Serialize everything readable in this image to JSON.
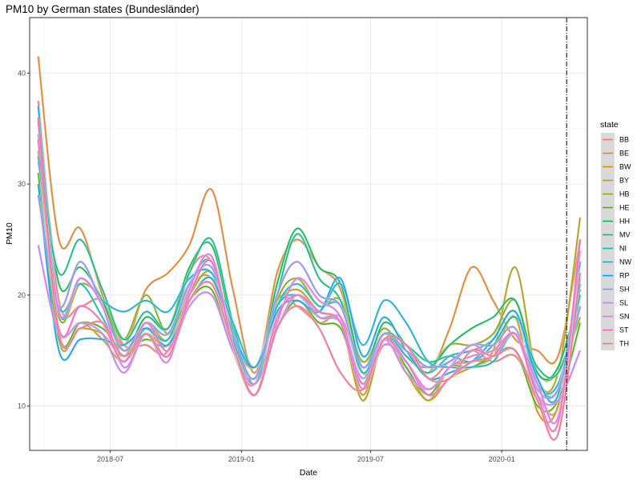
{
  "chart_data": {
    "type": "line",
    "title": "PM10 by German states (Bundesländer)",
    "xlabel": "Date",
    "ylabel": "PM10",
    "xlim": [
      "2018-03-10",
      "2020-04-30"
    ],
    "ylim": [
      6,
      45
    ],
    "x_ticks": [
      "2018-07-01",
      "2019-01-01",
      "2019-07-01",
      "2020-01-01"
    ],
    "x_tick_labels": [
      "2018-07",
      "2019-01",
      "2019-07",
      "2020-01"
    ],
    "y_ticks": [
      10,
      20,
      30,
      40
    ],
    "y_tick_labels": [
      "10",
      "20",
      "30",
      "40"
    ],
    "grid": true,
    "legend": {
      "title": "state",
      "position": "right"
    },
    "reference_line": {
      "x": "2020-04-01",
      "style": "dashdot"
    },
    "x": [
      "2018-03-22",
      "2018-04-20",
      "2018-05-20",
      "2018-06-20",
      "2018-07-20",
      "2018-08-20",
      "2018-09-20",
      "2018-10-20",
      "2018-11-20",
      "2018-12-20",
      "2019-01-20",
      "2019-02-20",
      "2019-03-20",
      "2019-04-20",
      "2019-05-20",
      "2019-06-20",
      "2019-07-20",
      "2019-08-20",
      "2019-09-20",
      "2019-10-20",
      "2019-11-20",
      "2019-12-20",
      "2020-01-20",
      "2020-02-20",
      "2020-03-20",
      "2020-04-20"
    ],
    "series": [
      {
        "name": "BB",
        "color": "#F8766D",
        "values": [
          37.5,
          19.5,
          19.0,
          19.5,
          15.5,
          15.5,
          15.0,
          22.0,
          23.0,
          15.0,
          12.0,
          19.5,
          19.0,
          17.5,
          18.0,
          13.5,
          16.0,
          15.5,
          12.5,
          14.0,
          15.0,
          14.0,
          14.5,
          11.0,
          10.0,
          23.0
        ]
      },
      {
        "name": "BE",
        "color": "#E7851E",
        "values": [
          41.5,
          25.0,
          26.0,
          20.0,
          15.5,
          20.5,
          22.0,
          24.5,
          29.5,
          20.5,
          13.0,
          22.0,
          25.0,
          22.5,
          20.5,
          13.0,
          15.5,
          15.0,
          13.0,
          17.0,
          22.5,
          19.5,
          16.0,
          15.0,
          14.5,
          25.0
        ]
      },
      {
        "name": "BW",
        "color": "#D09400",
        "values": [
          36.0,
          16.0,
          17.5,
          16.0,
          14.0,
          16.5,
          15.5,
          20.5,
          21.5,
          16.0,
          13.5,
          19.0,
          20.5,
          18.5,
          17.5,
          11.0,
          16.5,
          13.0,
          10.5,
          12.5,
          13.5,
          14.5,
          18.0,
          9.5,
          10.0,
          21.5
        ]
      },
      {
        "name": "BY",
        "color": "#B2A100",
        "values": [
          34.0,
          16.5,
          17.0,
          16.5,
          14.5,
          17.5,
          16.0,
          21.0,
          22.0,
          16.0,
          12.5,
          18.5,
          19.5,
          18.0,
          17.5,
          10.5,
          16.0,
          13.5,
          10.5,
          13.5,
          14.0,
          15.0,
          22.5,
          12.5,
          13.0,
          27.0
        ]
      },
      {
        "name": "HB",
        "color": "#89AC00",
        "values": [
          33.0,
          18.0,
          21.0,
          19.5,
          16.0,
          20.0,
          16.5,
          20.0,
          22.0,
          16.0,
          12.0,
          19.5,
          21.5,
          19.0,
          19.5,
          14.0,
          17.0,
          14.5,
          13.5,
          15.5,
          15.5,
          16.5,
          19.5,
          13.0,
          13.0,
          18.0
        ]
      },
      {
        "name": "HE",
        "color": "#45B500",
        "values": [
          31.0,
          16.0,
          17.5,
          17.0,
          15.0,
          16.0,
          15.5,
          19.5,
          20.5,
          15.0,
          12.5,
          17.0,
          19.5,
          17.5,
          17.0,
          12.0,
          16.5,
          13.5,
          11.0,
          13.5,
          13.5,
          14.5,
          15.0,
          10.0,
          10.5,
          17.5
        ]
      },
      {
        "name": "HH",
        "color": "#00BC51",
        "values": [
          35.5,
          21.0,
          22.5,
          19.5,
          15.0,
          18.0,
          17.0,
          22.5,
          24.5,
          17.0,
          12.5,
          21.0,
          26.0,
          22.5,
          21.0,
          13.5,
          17.5,
          15.5,
          13.5,
          15.5,
          17.0,
          18.0,
          19.5,
          13.0,
          13.5,
          20.5
        ]
      },
      {
        "name": "MV",
        "color": "#00C087",
        "values": [
          32.0,
          22.0,
          25.0,
          20.5,
          16.0,
          18.5,
          17.0,
          22.0,
          25.0,
          17.5,
          12.0,
          20.0,
          25.5,
          21.5,
          19.5,
          13.0,
          16.5,
          15.5,
          14.0,
          14.5,
          14.0,
          15.5,
          18.0,
          13.5,
          13.0,
          19.0
        ]
      },
      {
        "name": "NI",
        "color": "#00C0B2",
        "values": [
          32.5,
          19.0,
          21.0,
          18.0,
          14.5,
          17.0,
          16.0,
          21.0,
          23.0,
          16.0,
          12.5,
          19.0,
          21.0,
          19.0,
          19.0,
          13.0,
          16.5,
          14.5,
          13.0,
          14.5,
          15.0,
          16.0,
          18.5,
          12.0,
          12.0,
          20.0
        ]
      },
      {
        "name": "NW",
        "color": "#00B7D6",
        "values": [
          37.0,
          18.5,
          21.5,
          19.5,
          18.5,
          19.5,
          18.5,
          21.5,
          22.0,
          17.5,
          13.5,
          19.0,
          20.0,
          18.5,
          21.0,
          15.5,
          19.5,
          17.5,
          14.0,
          13.5,
          13.5,
          14.0,
          16.5,
          12.0,
          11.5,
          21.0
        ]
      },
      {
        "name": "RP",
        "color": "#00A6F5",
        "values": [
          30.0,
          15.0,
          16.0,
          16.0,
          15.5,
          17.0,
          15.5,
          19.5,
          21.5,
          16.5,
          13.5,
          18.5,
          19.5,
          18.5,
          21.5,
          14.5,
          18.0,
          15.0,
          12.5,
          13.0,
          14.0,
          16.0,
          18.5,
          12.5,
          11.0,
          23.0
        ]
      },
      {
        "name": "SH",
        "color": "#8C90FF",
        "values": [
          29.0,
          19.0,
          23.0,
          19.0,
          15.0,
          17.5,
          16.5,
          21.0,
          22.5,
          16.5,
          12.5,
          20.0,
          23.0,
          20.0,
          19.0,
          13.5,
          16.5,
          15.0,
          13.5,
          14.0,
          15.5,
          15.5,
          17.0,
          11.5,
          11.5,
          19.0
        ]
      },
      {
        "name": "SL",
        "color": "#C77CFF",
        "values": [
          24.5,
          16.5,
          17.5,
          16.5,
          13.0,
          16.5,
          14.5,
          19.0,
          20.0,
          15.0,
          12.0,
          17.0,
          20.0,
          18.0,
          17.5,
          12.5,
          16.0,
          13.0,
          11.5,
          13.5,
          15.5,
          14.5,
          16.5,
          11.0,
          10.5,
          15.0
        ]
      },
      {
        "name": "SN",
        "color": "#E86DF2",
        "values": [
          34.5,
          18.5,
          21.5,
          19.0,
          13.5,
          16.5,
          14.0,
          20.5,
          23.5,
          15.5,
          11.0,
          17.5,
          21.5,
          19.5,
          18.0,
          12.0,
          15.5,
          14.0,
          11.5,
          13.5,
          14.5,
          15.0,
          16.5,
          12.0,
          9.0,
          24.0
        ]
      },
      {
        "name": "ST",
        "color": "#FF61C9",
        "values": [
          34.0,
          17.0,
          19.0,
          17.5,
          14.0,
          17.5,
          15.0,
          20.0,
          23.0,
          15.5,
          11.0,
          18.0,
          20.0,
          18.5,
          17.5,
          11.5,
          16.0,
          14.0,
          11.0,
          12.5,
          14.0,
          14.5,
          16.5,
          11.0,
          8.5,
          25.0
        ]
      },
      {
        "name": "TH",
        "color": "#FF6C91",
        "values": [
          36.0,
          16.5,
          17.0,
          17.5,
          14.5,
          16.5,
          14.5,
          19.5,
          21.0,
          15.5,
          11.0,
          17.0,
          19.0,
          17.0,
          13.0,
          11.5,
          16.0,
          15.5,
          12.5,
          12.5,
          15.0,
          14.5,
          15.0,
          10.5,
          7.5,
          22.0
        ]
      }
    ]
  }
}
